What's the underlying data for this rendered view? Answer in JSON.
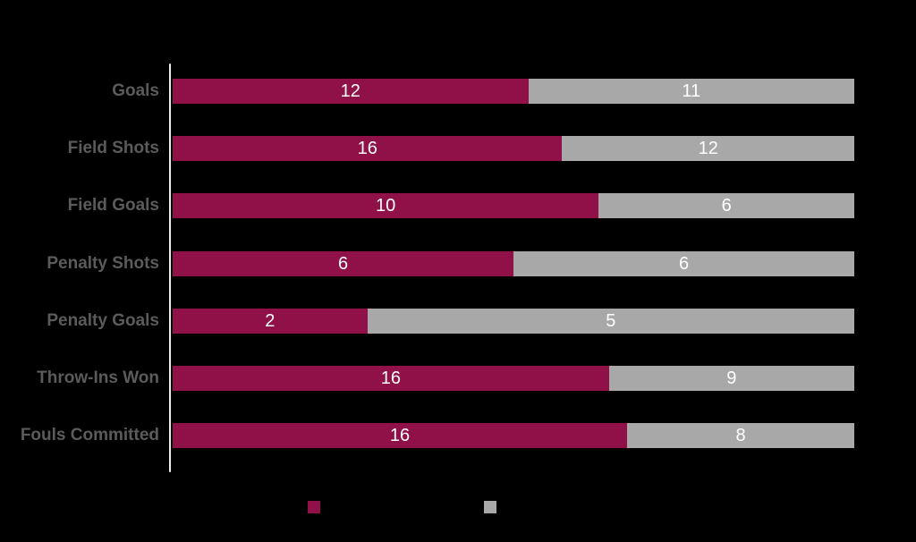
{
  "background": "#000000",
  "colors": {
    "maroon": "#8F1147",
    "gray": "#A8A8A8",
    "category_label": "#5B5B5B",
    "value_text": "#FFFFFF",
    "axis_line": "#EDEDED"
  },
  "chart_data": {
    "type": "bar",
    "orientation": "horizontal",
    "stacked": true,
    "normalized_to_100_percent": true,
    "title": "",
    "xlabel": "",
    "ylabel": "",
    "grid": false,
    "legend_position": "bottom",
    "legend_labels_visible": false,
    "value_labels": "inside-center",
    "categories": [
      "Goals",
      "Field Shots",
      "Field Goals",
      "Penalty Shots",
      "Penalty Goals",
      "Throw-Ins Won",
      "Fouls Committed"
    ],
    "series": [
      {
        "name": "maroon",
        "color": "#8F1147",
        "values": [
          12,
          16,
          10,
          6,
          2,
          16,
          16
        ]
      },
      {
        "name": "gray",
        "color": "#A8A8A8",
        "values": [
          11,
          12,
          6,
          6,
          5,
          9,
          8
        ]
      }
    ]
  }
}
